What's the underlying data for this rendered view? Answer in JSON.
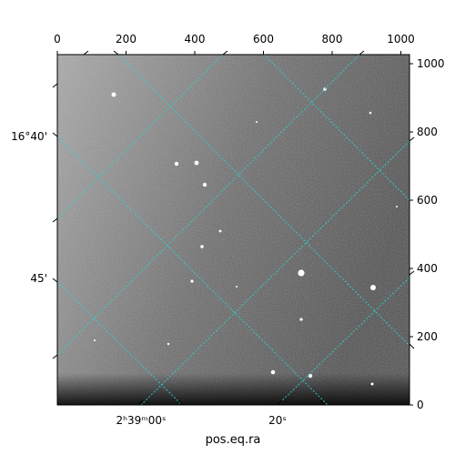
{
  "figure": {
    "xlabel": "pos.eq.ra",
    "pixel_ticks_top": [
      "0",
      "200",
      "400",
      "600",
      "800",
      "1000"
    ],
    "pixel_ticks_right": [
      "0",
      "200",
      "400",
      "600",
      "800",
      "1000"
    ],
    "ra_labels": [
      {
        "text": "2ʰ39ᵐ00ˢ"
      },
      {
        "text": "20ˢ"
      }
    ],
    "dec_labels": [
      {
        "text": "16°40'"
      },
      {
        "text": "45'"
      }
    ],
    "grid_color": "#2ad4d4",
    "image_description_colors": {
      "background_dark": "#4a4a4a",
      "background_light": "#bdbdbd"
    }
  }
}
